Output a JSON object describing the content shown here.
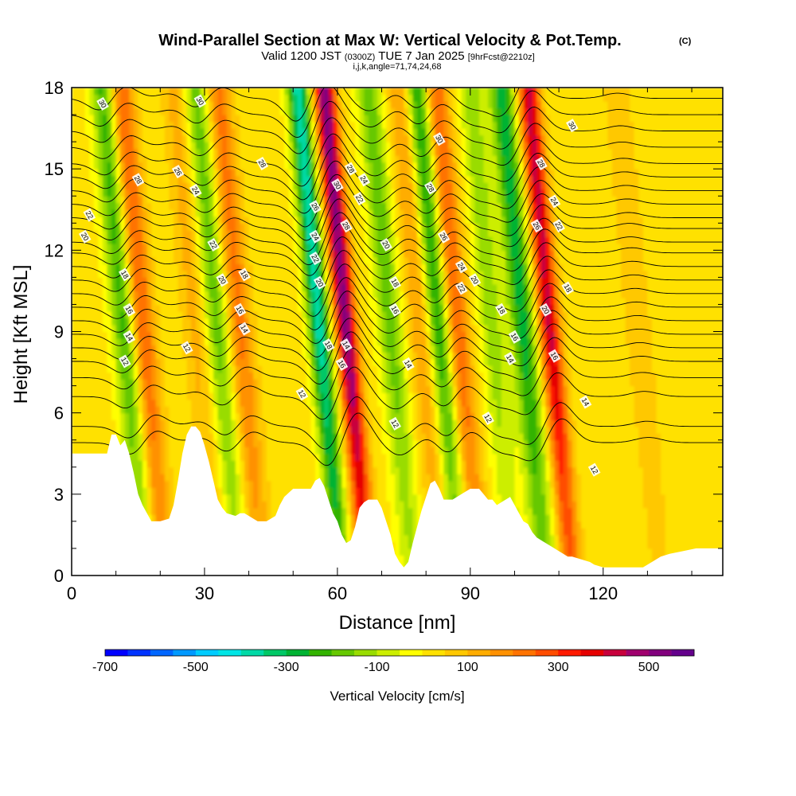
{
  "chart_data": {
    "type": "heatmap",
    "title": "Wind-Parallel Section at Max W: Vertical Velocity & Pot.Temp.",
    "title_mark": "(C)",
    "subtitle_parts": [
      "Valid 1200 JST ",
      "(0300Z)",
      " TUE 7 Jan 2025 ",
      "[9hrFcst@2210z]"
    ],
    "subtitle2": "i,j,k,angle=71,74,24,68",
    "xlabel": "Distance [nm]",
    "ylabel": "Height [Kft MSL]",
    "xlim": [
      0,
      147
    ],
    "ylim": [
      0,
      18
    ],
    "x_ticks": [
      0,
      30,
      60,
      90,
      120
    ],
    "y_ticks": [
      0,
      3,
      6,
      9,
      12,
      15,
      18
    ],
    "colorbar": {
      "title": "Vertical Velocity [cm/s]",
      "tick_labels": [
        "-700",
        "-500",
        "-300",
        "-100",
        "100",
        "300",
        "500"
      ],
      "tick_values": [
        -700,
        -500,
        -300,
        -100,
        100,
        300,
        500
      ],
      "range": [
        -700,
        600
      ],
      "colors": [
        "#0000ff",
        "#0033ff",
        "#0066ff",
        "#0099ff",
        "#00ccff",
        "#00e5e5",
        "#00d9a6",
        "#00c866",
        "#00b333",
        "#33b300",
        "#66c800",
        "#99dc00",
        "#ccee00",
        "#ffff00",
        "#ffe100",
        "#ffc800",
        "#ffad00",
        "#ff9100",
        "#ff7300",
        "#ff4d00",
        "#ff1a00",
        "#e60000",
        "#c8003c",
        "#a0006e",
        "#82007d",
        "#64008c"
      ]
    },
    "velocity_peaks": [
      {
        "x": 16,
        "w": 250,
        "sign": "up"
      },
      {
        "x": 12,
        "w": -250,
        "sign": "down"
      },
      {
        "x": 28,
        "w": 100,
        "sign": "up"
      },
      {
        "x": 33,
        "w": -200,
        "sign": "down"
      },
      {
        "x": 38,
        "w": 200,
        "sign": "up"
      },
      {
        "x": 56,
        "w": -400,
        "sign": "down"
      },
      {
        "x": 62,
        "w": 500,
        "sign": "up"
      },
      {
        "x": 72,
        "w": -200,
        "sign": "down"
      },
      {
        "x": 79,
        "w": 150,
        "sign": "up"
      },
      {
        "x": 83,
        "w": -300,
        "sign": "down"
      },
      {
        "x": 87,
        "w": 250,
        "sign": "up"
      },
      {
        "x": 95,
        "w": -150,
        "sign": "down"
      },
      {
        "x": 102,
        "w": -300,
        "sign": "down"
      },
      {
        "x": 108,
        "w": 400,
        "sign": "up"
      },
      {
        "x": 128,
        "w": 80,
        "sign": "up"
      }
    ],
    "isentrope_levels": [
      4.9,
      5.5,
      6.6,
      7.3,
      7.9,
      8.4,
      8.9,
      9.4,
      9.9,
      10.4,
      10.9,
      11.4,
      11.9,
      12.3,
      12.8,
      13.2,
      13.7,
      14.2,
      14.7,
      15.2,
      15.8,
      16.4,
      17.0,
      17.6
    ],
    "contour_labels": [
      {
        "text": "30",
        "x": 7,
        "y": 17.4
      },
      {
        "text": "30",
        "x": 29,
        "y": 17.5
      },
      {
        "text": "28",
        "x": 15,
        "y": 14.6
      },
      {
        "text": "26",
        "x": 24,
        "y": 14.9
      },
      {
        "text": "28",
        "x": 43,
        "y": 15.2
      },
      {
        "text": "24",
        "x": 28,
        "y": 14.2
      },
      {
        "text": "22",
        "x": 4,
        "y": 13.3
      },
      {
        "text": "20",
        "x": 3,
        "y": 12.5
      },
      {
        "text": "22",
        "x": 32,
        "y": 12.2
      },
      {
        "text": "18",
        "x": 12,
        "y": 11.1
      },
      {
        "text": "20",
        "x": 34,
        "y": 10.9
      },
      {
        "text": "18",
        "x": 39,
        "y": 11.1
      },
      {
        "text": "16",
        "x": 13,
        "y": 9.8
      },
      {
        "text": "16",
        "x": 38,
        "y": 9.8
      },
      {
        "text": "14",
        "x": 13,
        "y": 8.8
      },
      {
        "text": "14",
        "x": 39,
        "y": 9.1
      },
      {
        "text": "12",
        "x": 12,
        "y": 7.9
      },
      {
        "text": "12",
        "x": 26,
        "y": 8.4
      },
      {
        "text": "12",
        "x": 52,
        "y": 6.7
      },
      {
        "text": "30",
        "x": 60,
        "y": 14.4
      },
      {
        "text": "28",
        "x": 63,
        "y": 15.0
      },
      {
        "text": "26",
        "x": 55,
        "y": 13.6
      },
      {
        "text": "24",
        "x": 66,
        "y": 14.6
      },
      {
        "text": "22",
        "x": 65,
        "y": 13.9
      },
      {
        "text": "28",
        "x": 62,
        "y": 12.9
      },
      {
        "text": "24",
        "x": 55,
        "y": 12.5
      },
      {
        "text": "22",
        "x": 55,
        "y": 11.7
      },
      {
        "text": "20",
        "x": 56,
        "y": 10.8
      },
      {
        "text": "20",
        "x": 71,
        "y": 12.2
      },
      {
        "text": "18",
        "x": 73,
        "y": 10.8
      },
      {
        "text": "16",
        "x": 73,
        "y": 9.8
      },
      {
        "text": "14",
        "x": 76,
        "y": 7.8
      },
      {
        "text": "12",
        "x": 73,
        "y": 5.6
      },
      {
        "text": "18",
        "x": 58,
        "y": 8.5
      },
      {
        "text": "16",
        "x": 61,
        "y": 7.8
      },
      {
        "text": "14",
        "x": 62,
        "y": 8.5
      },
      {
        "text": "30",
        "x": 83,
        "y": 16.1
      },
      {
        "text": "28",
        "x": 81,
        "y": 14.3
      },
      {
        "text": "26",
        "x": 84,
        "y": 12.5
      },
      {
        "text": "24",
        "x": 88,
        "y": 11.4
      },
      {
        "text": "22",
        "x": 88,
        "y": 10.6
      },
      {
        "text": "20",
        "x": 91,
        "y": 10.9
      },
      {
        "text": "18",
        "x": 97,
        "y": 9.8
      },
      {
        "text": "16",
        "x": 100,
        "y": 8.8
      },
      {
        "text": "14",
        "x": 99,
        "y": 8.0
      },
      {
        "text": "12",
        "x": 94,
        "y": 5.8
      },
      {
        "text": "28",
        "x": 106,
        "y": 15.2
      },
      {
        "text": "30",
        "x": 113,
        "y": 16.6
      },
      {
        "text": "24",
        "x": 109,
        "y": 13.8
      },
      {
        "text": "26",
        "x": 105,
        "y": 12.9
      },
      {
        "text": "22",
        "x": 110,
        "y": 12.9
      },
      {
        "text": "20",
        "x": 107,
        "y": 9.8
      },
      {
        "text": "18",
        "x": 112,
        "y": 10.6
      },
      {
        "text": "16",
        "x": 109,
        "y": 8.1
      },
      {
        "text": "14",
        "x": 116,
        "y": 6.4
      },
      {
        "text": "12",
        "x": 118,
        "y": 3.9
      }
    ],
    "terrain": [
      [
        0,
        4.5
      ],
      [
        2,
        4.5
      ],
      [
        4,
        4.5
      ],
      [
        6,
        4.5
      ],
      [
        8,
        4.5
      ],
      [
        9,
        5.2
      ],
      [
        10,
        5.2
      ],
      [
        11,
        4.8
      ],
      [
        12,
        5.0
      ],
      [
        13,
        4.5
      ],
      [
        14,
        3.8
      ],
      [
        15,
        3.0
      ],
      [
        16,
        2.6
      ],
      [
        17,
        2.3
      ],
      [
        18,
        2.0
      ],
      [
        20,
        2.0
      ],
      [
        22,
        2.1
      ],
      [
        23,
        2.6
      ],
      [
        24,
        3.5
      ],
      [
        25,
        4.5
      ],
      [
        26,
        5.2
      ],
      [
        27,
        5.5
      ],
      [
        28,
        5.5
      ],
      [
        29,
        5.3
      ],
      [
        30,
        4.8
      ],
      [
        31,
        4.2
      ],
      [
        32,
        3.5
      ],
      [
        33,
        2.8
      ],
      [
        34,
        2.5
      ],
      [
        35,
        2.3
      ],
      [
        37,
        2.2
      ],
      [
        38,
        2.3
      ],
      [
        39,
        2.3
      ],
      [
        40,
        2.2
      ],
      [
        42,
        2.0
      ],
      [
        44,
        2.0
      ],
      [
        46,
        2.2
      ],
      [
        47,
        2.6
      ],
      [
        48,
        2.9
      ],
      [
        50,
        3.2
      ],
      [
        52,
        3.2
      ],
      [
        54,
        3.2
      ],
      [
        55,
        3.5
      ],
      [
        56,
        3.6
      ],
      [
        57,
        3.3
      ],
      [
        58,
        2.8
      ],
      [
        59,
        2.3
      ],
      [
        60,
        2.0
      ],
      [
        61,
        1.5
      ],
      [
        62,
        1.2
      ],
      [
        63,
        1.3
      ],
      [
        64,
        1.8
      ],
      [
        65,
        2.5
      ],
      [
        66,
        2.7
      ],
      [
        67,
        2.8
      ],
      [
        69,
        2.8
      ],
      [
        70,
        2.5
      ],
      [
        71,
        2.0
      ],
      [
        72,
        1.5
      ],
      [
        73,
        0.8
      ],
      [
        74,
        0.5
      ],
      [
        75,
        0.3
      ],
      [
        76,
        0.5
      ],
      [
        77,
        1.2
      ],
      [
        78,
        1.8
      ],
      [
        79,
        2.4
      ],
      [
        80,
        2.9
      ],
      [
        81,
        3.4
      ],
      [
        82,
        3.5
      ],
      [
        83,
        3.2
      ],
      [
        84,
        2.8
      ],
      [
        86,
        2.8
      ],
      [
        88,
        3.0
      ],
      [
        90,
        3.2
      ],
      [
        92,
        3.2
      ],
      [
        93,
        3.0
      ],
      [
        94,
        2.8
      ],
      [
        95,
        2.8
      ],
      [
        96,
        2.6
      ],
      [
        97,
        2.7
      ],
      [
        98,
        2.8
      ],
      [
        99,
        2.9
      ],
      [
        100,
        2.6
      ],
      [
        101,
        2.3
      ],
      [
        102,
        2.0
      ],
      [
        103,
        1.9
      ],
      [
        104,
        1.6
      ],
      [
        105,
        1.4
      ],
      [
        106,
        1.3
      ],
      [
        107,
        1.2
      ],
      [
        108,
        1.1
      ],
      [
        109,
        1.0
      ],
      [
        110,
        0.9
      ],
      [
        111,
        0.8
      ],
      [
        112,
        0.7
      ],
      [
        113,
        0.7
      ],
      [
        115,
        0.6
      ],
      [
        117,
        0.5
      ],
      [
        118,
        0.4
      ],
      [
        120,
        0.3
      ],
      [
        123,
        0.3
      ],
      [
        126,
        0.3
      ],
      [
        129,
        0.3
      ],
      [
        131,
        0.5
      ],
      [
        133,
        0.7
      ],
      [
        135,
        0.8
      ],
      [
        138,
        0.9
      ],
      [
        141,
        1.0
      ],
      [
        144,
        1.0
      ],
      [
        147,
        1.0
      ]
    ]
  }
}
